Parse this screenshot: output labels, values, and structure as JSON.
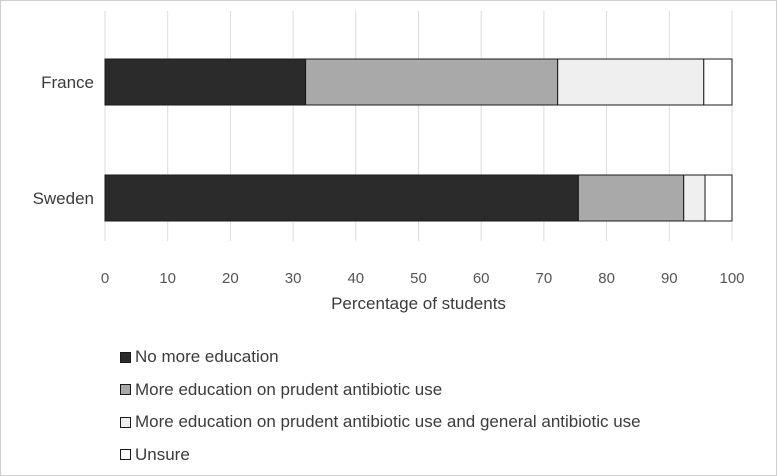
{
  "chart_data": {
    "type": "bar",
    "orientation": "horizontal",
    "stacked": true,
    "title": "",
    "xlabel": "Percentage of students",
    "ylabel": "",
    "xlim": [
      0,
      100
    ],
    "xticks": [
      "0",
      "10",
      "20",
      "30",
      "40",
      "50",
      "60",
      "70",
      "80",
      "90",
      "100"
    ],
    "grid": "vertical",
    "legend_position": "bottom",
    "categories": [
      "France",
      "Sweden"
    ],
    "series": [
      {
        "name": "No more education",
        "values": [
          32,
          75.5
        ],
        "color": "#2b2b2b"
      },
      {
        "name": "More education on prudent antibiotic use",
        "values": [
          40.2,
          16.8
        ],
        "color": "#a9a9a9"
      },
      {
        "name": "More education on prudent antibiotic use and general antibiotic use",
        "values": [
          23.3,
          3.4
        ],
        "color": "#efefef"
      },
      {
        "name": "Unsure",
        "values": [
          4.5,
          4.3
        ],
        "color": "#ffffff"
      }
    ]
  }
}
